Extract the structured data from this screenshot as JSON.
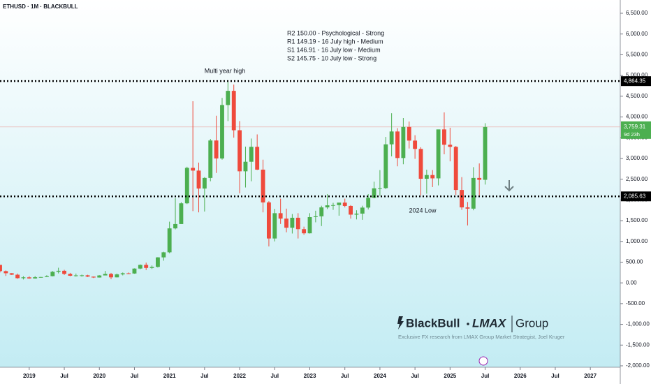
{
  "chart_data": {
    "type": "candlestick",
    "title": "ETHUSD · 1M · BLACKBULL",
    "up_color": "#4caf50",
    "down_color": "#ef4a3c",
    "x": [
      "2018-08",
      "2018-09",
      "2018-10",
      "2018-11",
      "2018-12",
      "2019-01",
      "2019-02",
      "2019-03",
      "2019-04",
      "2019-05",
      "2019-06",
      "2019-07",
      "2019-08",
      "2019-09",
      "2019-10",
      "2019-11",
      "2019-12",
      "2020-01",
      "2020-02",
      "2020-03",
      "2020-04",
      "2020-05",
      "2020-06",
      "2020-07",
      "2020-08",
      "2020-09",
      "2020-10",
      "2020-11",
      "2020-12",
      "2021-01",
      "2021-02",
      "2021-03",
      "2021-04",
      "2021-05",
      "2021-06",
      "2021-07",
      "2021-08",
      "2021-09",
      "2021-10",
      "2021-11",
      "2021-12",
      "2022-01",
      "2022-02",
      "2022-03",
      "2022-04",
      "2022-05",
      "2022-06",
      "2022-07",
      "2022-08",
      "2022-09",
      "2022-10",
      "2022-11",
      "2022-12",
      "2023-01",
      "2023-02",
      "2023-03",
      "2023-04",
      "2023-05",
      "2023-06",
      "2023-07",
      "2023-08",
      "2023-09",
      "2023-10",
      "2023-11",
      "2023-12",
      "2024-01",
      "2024-02",
      "2024-03",
      "2024-04",
      "2024-05",
      "2024-06",
      "2024-07",
      "2024-08",
      "2024-09",
      "2024-10",
      "2024-11",
      "2024-12",
      "2025-01",
      "2025-02",
      "2025-03",
      "2025-04",
      "2025-05",
      "2025-06",
      "2025-07"
    ],
    "open": [
      434,
      283,
      232,
      197,
      113,
      133,
      107,
      136,
      141,
      162,
      268,
      291,
      218,
      172,
      180,
      182,
      151,
      129,
      179,
      217,
      133,
      206,
      231,
      226,
      345,
      434,
      360,
      386,
      615,
      737,
      1314,
      1418,
      1918,
      2773,
      2707,
      2275,
      2530,
      3433,
      3000,
      4288,
      4630,
      3680,
      2690,
      2920,
      3280,
      2730,
      1940,
      1070,
      1680,
      1550,
      1330,
      1570,
      1295,
      1195,
      1585,
      1605,
      1820,
      1870,
      1875,
      1935,
      1855,
      1645,
      1670,
      1815,
      2050,
      2280,
      2285,
      3340,
      3650,
      3010,
      3760,
      3430,
      3230,
      2510,
      2600,
      2520,
      3700,
      3330,
      3280,
      2240,
      1820,
      1790,
      2530,
      2485
    ],
    "high": [
      435,
      300,
      235,
      225,
      160,
      160,
      165,
      145,
      185,
      285,
      365,
      315,
      240,
      225,
      200,
      195,
      155,
      185,
      287,
      240,
      225,
      250,
      250,
      350,
      445,
      488,
      420,
      620,
      750,
      1475,
      2040,
      1945,
      2800,
      4380,
      2900,
      2550,
      3470,
      4030,
      4460,
      4870,
      4780,
      3900,
      3285,
      3480,
      3580,
      2970,
      1970,
      1785,
      2030,
      1790,
      1660,
      1680,
      1355,
      1680,
      1740,
      1860,
      2140,
      1930,
      1930,
      2030,
      1875,
      1750,
      1860,
      2140,
      2440,
      2720,
      3520,
      4090,
      3730,
      3975,
      3890,
      3560,
      3270,
      2730,
      2720,
      3660,
      4110,
      3740,
      3300,
      2550,
      1950,
      2790,
      2880,
      3850
    ],
    "low": [
      250,
      167,
      190,
      100,
      82,
      100,
      102,
      125,
      140,
      158,
      228,
      190,
      160,
      153,
      150,
      140,
      117,
      127,
      180,
      90,
      130,
      180,
      216,
      220,
      330,
      310,
      335,
      370,
      535,
      715,
      1290,
      1440,
      1900,
      1730,
      1700,
      1720,
      2450,
      2650,
      2970,
      3900,
      3500,
      2160,
      2300,
      2450,
      2720,
      1700,
      880,
      1000,
      1420,
      1220,
      1190,
      1070,
      1160,
      1190,
      1460,
      1370,
      1780,
      1760,
      1620,
      1820,
      1550,
      1530,
      1520,
      1770,
      2040,
      2100,
      2260,
      3050,
      2810,
      2860,
      3240,
      2990,
      2110,
      2150,
      2310,
      2350,
      3100,
      2930,
      2120,
      1760,
      1385,
      1750,
      2110,
      2370
    ],
    "close": [
      283,
      232,
      197,
      113,
      133,
      107,
      136,
      141,
      162,
      268,
      291,
      218,
      172,
      180,
      182,
      151,
      129,
      179,
      217,
      133,
      206,
      231,
      226,
      345,
      434,
      360,
      386,
      615,
      737,
      1314,
      1418,
      1918,
      2773,
      2707,
      2275,
      2530,
      3433,
      3000,
      4288,
      4630,
      3680,
      2690,
      2920,
      3280,
      2730,
      1940,
      1070,
      1680,
      1550,
      1330,
      1570,
      1295,
      1195,
      1585,
      1605,
      1820,
      1870,
      1875,
      1935,
      1855,
      1645,
      1670,
      1815,
      2050,
      2280,
      2285,
      3340,
      3650,
      3010,
      3760,
      3430,
      3230,
      2510,
      2600,
      2520,
      3700,
      3330,
      3280,
      2240,
      1820,
      1790,
      2530,
      2485,
      3759.31
    ],
    "xlim": [
      "2018-08",
      "2027-06"
    ],
    "xticks": [
      {
        "value": "2019-01",
        "label": "2019"
      },
      {
        "value": "2019-07",
        "label": "Jul"
      },
      {
        "value": "2020-01",
        "label": "2020"
      },
      {
        "value": "2020-07",
        "label": "Jul"
      },
      {
        "value": "2021-01",
        "label": "2021"
      },
      {
        "value": "2021-07",
        "label": "Jul"
      },
      {
        "value": "2022-01",
        "label": "2022"
      },
      {
        "value": "2022-07",
        "label": "Jul"
      },
      {
        "value": "2023-01",
        "label": "2023"
      },
      {
        "value": "2023-07",
        "label": "Jul"
      },
      {
        "value": "2024-01",
        "label": "2024"
      },
      {
        "value": "2024-07",
        "label": "Jul"
      },
      {
        "value": "2025-01",
        "label": "2025"
      },
      {
        "value": "2025-07",
        "label": "Jul"
      },
      {
        "value": "2026-01",
        "label": "2026"
      },
      {
        "value": "2026-07",
        "label": "Jul"
      },
      {
        "value": "2027-01",
        "label": "2027"
      }
    ],
    "ylim": [
      -2034,
      6820
    ],
    "yticks": [
      {
        "value": -2000,
        "label": "-2,000.00"
      },
      {
        "value": -1500,
        "label": "-1,500.00"
      },
      {
        "value": -1000,
        "label": "-1,000.00"
      },
      {
        "value": -500,
        "label": "-500.00"
      },
      {
        "value": 0,
        "label": "0.00"
      },
      {
        "value": 500,
        "label": "500.00"
      },
      {
        "value": 1000,
        "label": "1,000.00"
      },
      {
        "value": 1500,
        "label": "1,500.00"
      },
      {
        "value": 2000,
        "label": "2,000.00"
      },
      {
        "value": 2500,
        "label": "2,500.00"
      },
      {
        "value": 3000,
        "label": "3,000.00"
      },
      {
        "value": 3500,
        "label": "3,500.00"
      },
      {
        "value": 4000,
        "label": "4,000.00"
      },
      {
        "value": 4500,
        "label": "4,500.00"
      },
      {
        "value": 5000,
        "label": "5,000.00"
      },
      {
        "value": 5500,
        "label": "5,500.00"
      },
      {
        "value": 6000,
        "label": "6,000.00"
      },
      {
        "value": 6500,
        "label": "6,500.00"
      }
    ],
    "levels": [
      {
        "value": 4864.35,
        "label": "4,864.35"
      },
      {
        "value": 2085.63,
        "label": "2,085.63"
      }
    ],
    "last_price": {
      "value": 3759.31,
      "label": "3,759.31"
    },
    "countdown": "9d 23h",
    "annotations": [
      "Multi year high",
      "2024 Low"
    ],
    "notes": [
      "R2 150.00 - Psychological - Strong",
      "R1 149.19 - 16 July high - Medium",
      "S1 146.91 - 16 July low - Medium",
      "S2 145.75 - 10 July low - Strong"
    ],
    "brand": {
      "name1": "BlackBull",
      "name2": "LMAX",
      "name3": "Group",
      "tagline": "Exclusive FX research from LMAX Group Market Strategist, Joel Kruger"
    }
  }
}
